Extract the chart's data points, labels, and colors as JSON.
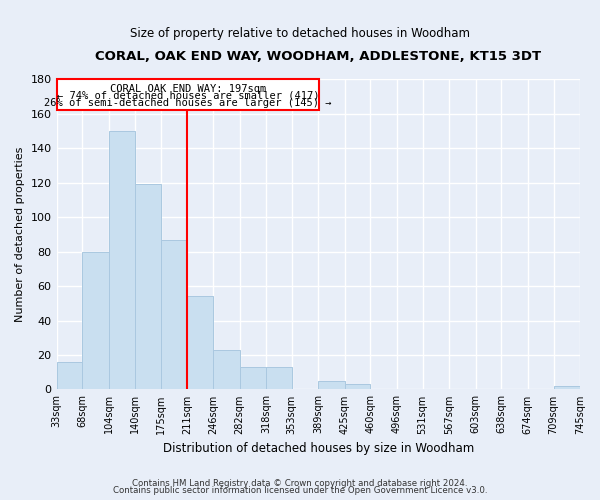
{
  "title": "CORAL, OAK END WAY, WOODHAM, ADDLESTONE, KT15 3DT",
  "subtitle": "Size of property relative to detached houses in Woodham",
  "xlabel": "Distribution of detached houses by size in Woodham",
  "ylabel": "Number of detached properties",
  "bar_color": "#c9dff0",
  "bar_edge_color": "#aac8e0",
  "background_color": "#e8eef8",
  "grid_color": "#ffffff",
  "bins": [
    33,
    68,
    104,
    140,
    175,
    211,
    246,
    282,
    318,
    353,
    389,
    425,
    460,
    496,
    531,
    567,
    603,
    638,
    674,
    709,
    745
  ],
  "counts": [
    16,
    80,
    150,
    119,
    87,
    54,
    23,
    13,
    13,
    0,
    5,
    3,
    0,
    0,
    0,
    0,
    0,
    0,
    0,
    2
  ],
  "property_line_x": 211,
  "annotation_title": "CORAL OAK END WAY: 197sqm",
  "annotation_smaller": "← 74% of detached houses are smaller (417)",
  "annotation_larger": "26% of semi-detached houses are larger (145) →",
  "tick_labels": [
    "33sqm",
    "68sqm",
    "104sqm",
    "140sqm",
    "175sqm",
    "211sqm",
    "246sqm",
    "282sqm",
    "318sqm",
    "353sqm",
    "389sqm",
    "425sqm",
    "460sqm",
    "496sqm",
    "531sqm",
    "567sqm",
    "603sqm",
    "638sqm",
    "674sqm",
    "709sqm",
    "745sqm"
  ],
  "footnote1": "Contains HM Land Registry data © Crown copyright and database right 2024.",
  "footnote2": "Contains public sector information licensed under the Open Government Licence v3.0.",
  "ylim": [
    0,
    180
  ],
  "yticks": [
    0,
    20,
    40,
    60,
    80,
    100,
    120,
    140,
    160,
    180
  ]
}
